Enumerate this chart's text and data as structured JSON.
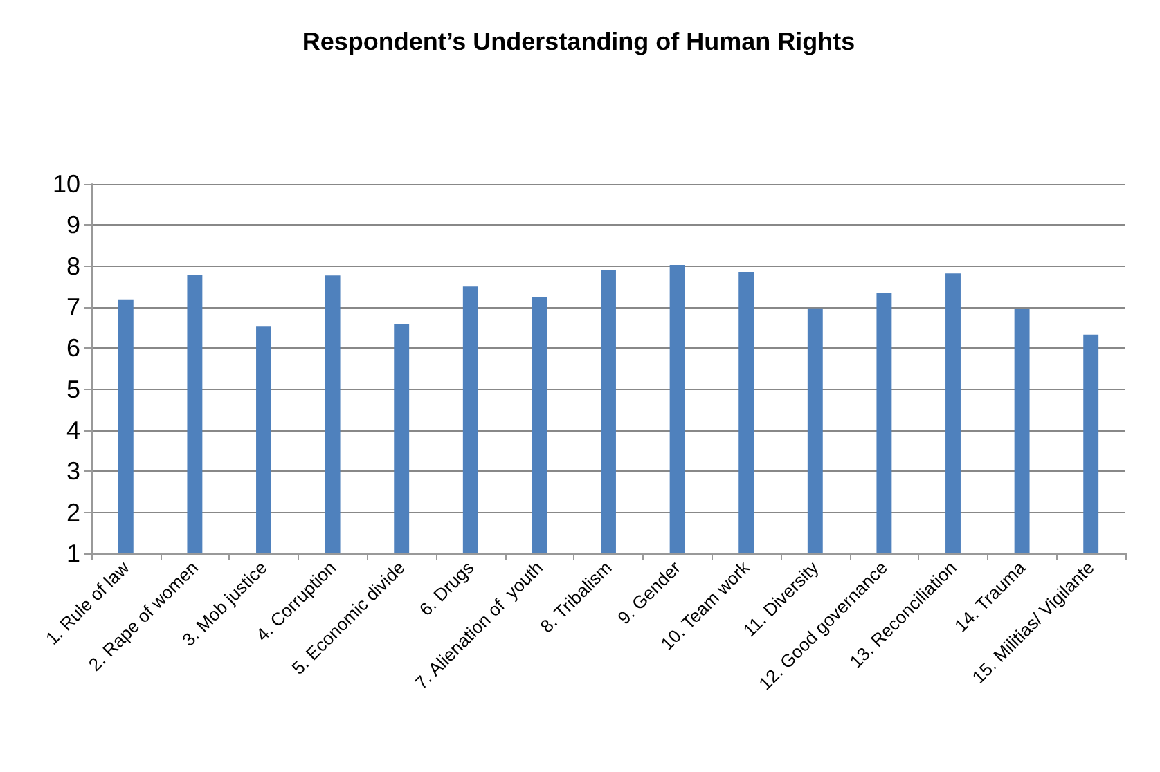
{
  "chart_data": {
    "type": "bar",
    "title": "Respondent’s Understanding of Human Rights",
    "categories": [
      "1. Rule of law",
      "2. Rape of women",
      "3. Mob justice",
      "4. Corruption",
      "5. Economic divide",
      "6. Drugs",
      "7. Alienation of  youth",
      "8. Tribalism",
      "9. Gender",
      "10. Team work",
      "11. Diversity",
      "12. Good governance",
      "13. Reconciliation",
      "14. Trauma",
      "15. Militias/ Vigilante"
    ],
    "values": [
      7.19,
      7.78,
      6.54,
      7.77,
      6.58,
      7.5,
      7.24,
      7.9,
      8.03,
      7.86,
      6.97,
      7.34,
      7.82,
      6.95,
      6.33
    ],
    "color": "#4f81bd",
    "ylim": [
      1,
      10
    ],
    "yticks": [
      1,
      2,
      3,
      4,
      5,
      6,
      7,
      8,
      9,
      10
    ],
    "grid": "y"
  }
}
